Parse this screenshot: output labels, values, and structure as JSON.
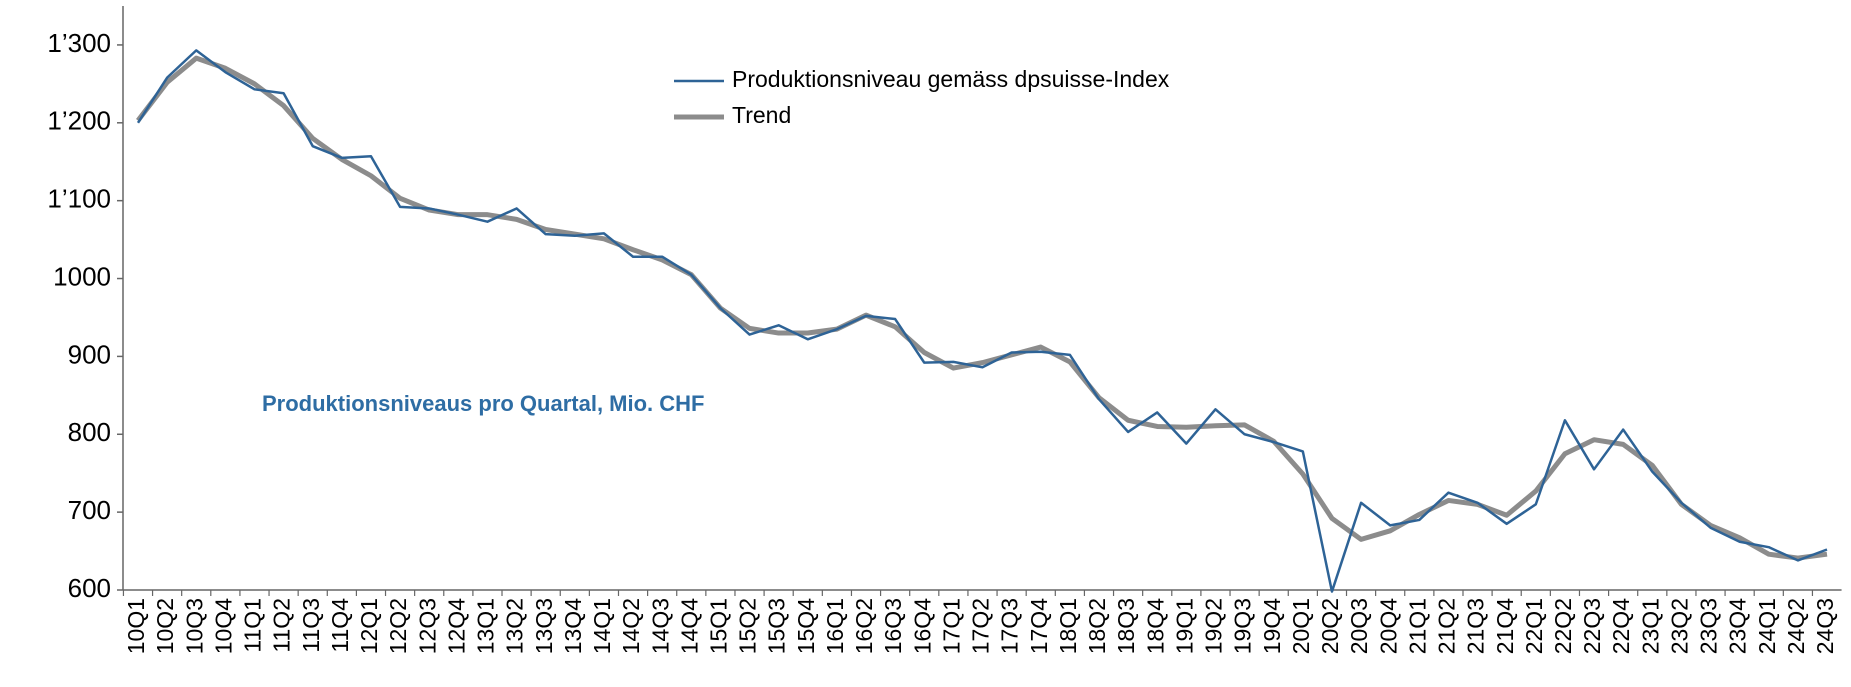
{
  "chart_data": {
    "type": "line",
    "categories": [
      "10Q1",
      "10Q2",
      "10Q3",
      "10Q4",
      "11Q1",
      "11Q2",
      "11Q3",
      "11Q4",
      "12Q1",
      "12Q2",
      "12Q3",
      "12Q4",
      "13Q1",
      "13Q2",
      "13Q3",
      "13Q4",
      "14Q1",
      "14Q2",
      "14Q3",
      "14Q4",
      "15Q1",
      "15Q2",
      "15Q3",
      "15Q4",
      "16Q1",
      "16Q2",
      "16Q3",
      "16Q4",
      "17Q1",
      "17Q2",
      "17Q3",
      "17Q4",
      "18Q1",
      "18Q2",
      "18Q3",
      "18Q4",
      "19Q1",
      "19Q2",
      "19Q3",
      "19Q4",
      "20Q1",
      "20Q2",
      "20Q3",
      "20Q4",
      "21Q1",
      "21Q2",
      "21Q3",
      "21Q4",
      "22Q1",
      "22Q2",
      "22Q3",
      "22Q4",
      "23Q1",
      "23Q2",
      "23Q3",
      "23Q4",
      "24Q1",
      "24Q2",
      "24Q3"
    ],
    "series": [
      {
        "name": "Produktionsniveau gemäss dpsuisse-Index",
        "color": "#2e6396",
        "width": 2.5,
        "values": [
          1200,
          1258,
          1293,
          1265,
          1243,
          1238,
          1170,
          1155,
          1157,
          1092,
          1090,
          1082,
          1073,
          1090,
          1057,
          1055,
          1058,
          1028,
          1028,
          1005,
          962,
          928,
          940,
          922,
          935,
          952,
          948,
          892,
          893,
          886,
          905,
          906,
          902,
          845,
          803,
          828,
          788,
          832,
          800,
          790,
          778,
          598,
          712,
          683,
          690,
          725,
          712,
          685,
          710,
          818,
          755,
          806,
          752,
          712,
          680,
          662,
          655,
          638,
          652
        ]
      },
      {
        "name": "Trend",
        "color": "#8c8c8c",
        "width": 5,
        "values": [
          1203,
          1252,
          1283,
          1270,
          1250,
          1222,
          1180,
          1153,
          1132,
          1103,
          1088,
          1082,
          1082,
          1076,
          1063,
          1057,
          1051,
          1037,
          1024,
          1005,
          962,
          936,
          930,
          930,
          935,
          953,
          938,
          905,
          885,
          892,
          902,
          912,
          893,
          847,
          818,
          810,
          809,
          811,
          812,
          791,
          749,
          692,
          665,
          676,
          697,
          715,
          710,
          696,
          727,
          775,
          793,
          787,
          760,
          710,
          683,
          667,
          646,
          641,
          646
        ]
      }
    ],
    "annotation": "Produktionsniveaus pro Quartal, Mio. CHF",
    "annotation_color": "#2e6da4",
    "ylim": [
      600,
      1350
    ],
    "yticks": [
      600,
      700,
      800,
      900,
      1000,
      {
        "value": 1100,
        "label": "1’100"
      },
      {
        "value": 1200,
        "label": "1’200"
      },
      {
        "value": 1300,
        "label": "1’300"
      }
    ],
    "grid": false
  }
}
